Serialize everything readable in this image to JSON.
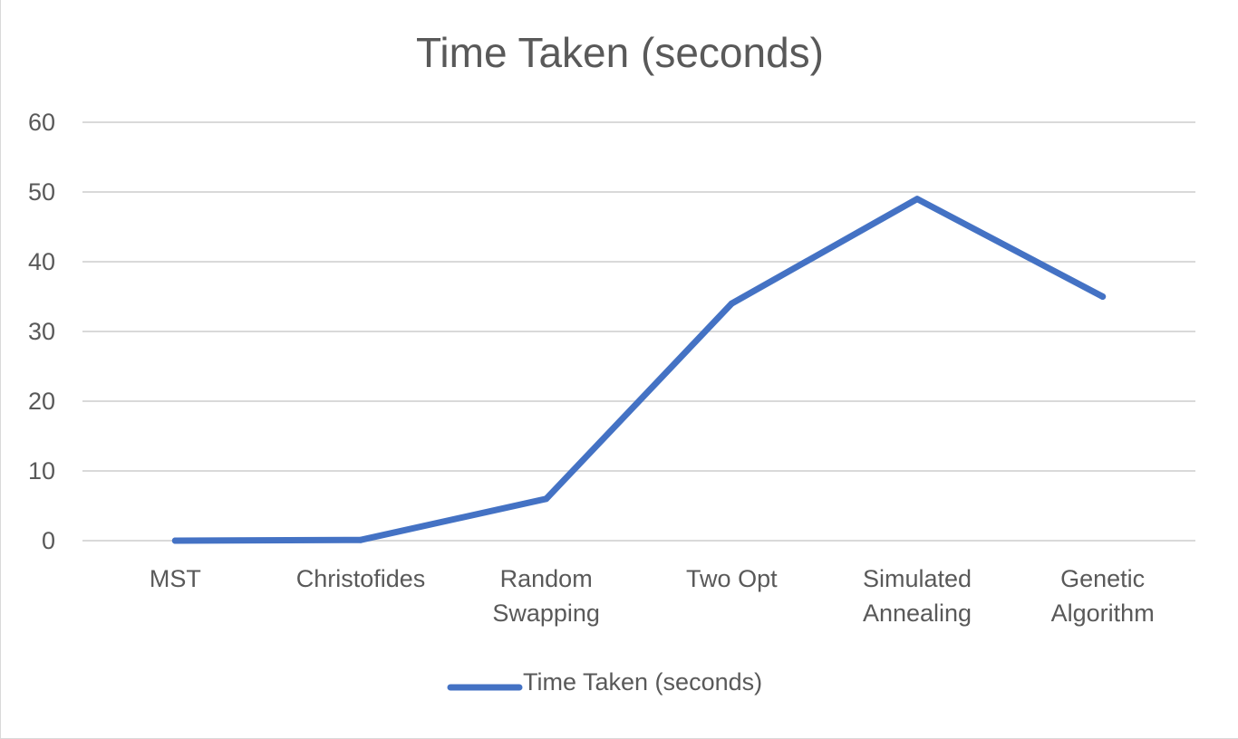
{
  "chart_data": {
    "type": "line",
    "title": "Time Taken (seconds)",
    "categories": [
      [
        "MST"
      ],
      [
        "Christofides"
      ],
      [
        "Random",
        "Swapping"
      ],
      [
        "Two Opt"
      ],
      [
        "Simulated",
        "Annealing"
      ],
      [
        "Genetic",
        "Algorithm"
      ]
    ],
    "series": [
      {
        "name": "Time Taken (seconds)",
        "values": [
          0,
          0.1,
          6,
          34,
          49,
          35
        ],
        "color": "#4472c4"
      }
    ],
    "ylim": [
      0,
      60
    ],
    "yticks": [
      "0",
      "10",
      "20",
      "30",
      "40",
      "50",
      "60"
    ],
    "grid": true,
    "legend_position": "bottom",
    "gridline_color": "#d9d9d9",
    "text_color": "#595959"
  }
}
